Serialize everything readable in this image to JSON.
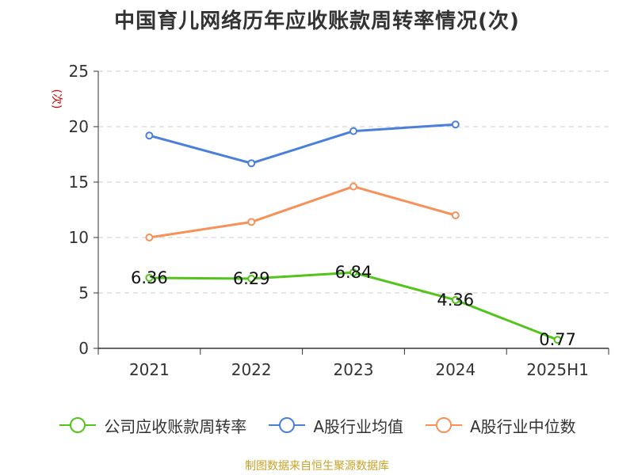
{
  "chart_data": {
    "type": "line",
    "title": "中国育儿网络历年应收账款周转率情况(次)",
    "ylabel": "(次)",
    "xlabel": "",
    "categories": [
      "2021",
      "2022",
      "2023",
      "2024",
      "2025H1"
    ],
    "ylim": [
      0,
      25
    ],
    "yticks": [
      0,
      5,
      10,
      15,
      20,
      25
    ],
    "grid": true,
    "legend_position": "bottom",
    "series": [
      {
        "name": "公司应收账款周转率",
        "color": "#52c41a",
        "values": [
          6.36,
          6.29,
          6.84,
          4.36,
          0.77
        ],
        "labels": [
          "6.36",
          "6.29",
          "6.84",
          "4.36",
          "0.77"
        ]
      },
      {
        "name": "A股行业均值",
        "color": "#4a7fdb",
        "values": [
          19.2,
          16.7,
          19.6,
          20.2,
          null
        ]
      },
      {
        "name": "A股行业中位数",
        "color": "#f7915a",
        "values": [
          10.0,
          11.4,
          14.6,
          12.0,
          null
        ]
      }
    ]
  },
  "source": "制图数据来自恒生聚源数据库"
}
